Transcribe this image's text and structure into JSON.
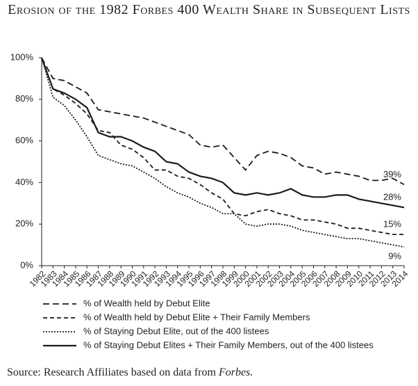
{
  "chart_data": {
    "type": "line",
    "title": "Erosion of the 1982 Forbes 400 Wealth Share in Subsequent Lists",
    "categories": [
      "1982",
      "1983",
      "1984",
      "1985",
      "1986",
      "1987",
      "1988",
      "1989",
      "1990",
      "1991",
      "1992",
      "1993",
      "1994",
      "1995",
      "1996",
      "1997",
      "1998",
      "1999",
      "2000",
      "2001",
      "2002",
      "2003",
      "2004",
      "2005",
      "2006",
      "2007",
      "2008",
      "2009",
      "2010",
      "2011",
      "2012",
      "2013",
      "2014"
    ],
    "ylim": [
      0,
      100
    ],
    "yticks": [
      {
        "value": 0,
        "label": "0%"
      },
      {
        "value": 20,
        "label": "20%"
      },
      {
        "value": 40,
        "label": "40%"
      },
      {
        "value": 60,
        "label": "60%"
      },
      {
        "value": 80,
        "label": "80%"
      },
      {
        "value": 100,
        "label": "100%"
      }
    ],
    "series": [
      {
        "name": "% of Wealth held by Debut Elite",
        "color": "#1a1a1a",
        "line_style": "long-dash",
        "values": [
          100,
          90,
          89,
          86,
          83,
          75,
          74,
          73,
          72,
          71,
          69,
          67,
          65,
          63,
          58,
          57,
          58,
          52,
          46,
          53,
          55,
          54,
          52,
          48,
          47,
          44,
          45,
          44,
          43,
          41,
          41,
          42,
          39
        ],
        "value_labels": [
          null,
          null,
          null,
          null,
          null,
          null,
          null,
          null,
          null,
          null,
          null,
          null,
          null,
          null,
          null,
          null,
          null,
          null,
          null,
          null,
          null,
          null,
          null,
          null,
          null,
          null,
          null,
          null,
          null,
          null,
          null,
          null,
          "39%"
        ]
      },
      {
        "name": "% of Wealth held by Debut Elite + Their Family Members",
        "color": "#1a1a1a",
        "line_style": "dash",
        "values": [
          100,
          85,
          82,
          78,
          73,
          65,
          64,
          58,
          56,
          52,
          46,
          46,
          43,
          42,
          39,
          35,
          32,
          25,
          24,
          26,
          27,
          25,
          24,
          22,
          22,
          21,
          20,
          18,
          18,
          17,
          16,
          15,
          15
        ],
        "value_labels": [
          null,
          null,
          null,
          null,
          null,
          null,
          null,
          null,
          null,
          null,
          null,
          null,
          null,
          null,
          null,
          null,
          null,
          null,
          null,
          null,
          null,
          null,
          null,
          null,
          null,
          null,
          null,
          null,
          null,
          null,
          null,
          null,
          "15%"
        ]
      },
      {
        "name": "% of Staying Debut Elite, out of the 400 listees",
        "color": "#1a1a1a",
        "line_style": "dotted",
        "values": [
          100,
          81,
          77,
          70,
          62,
          53,
          51,
          49,
          48,
          45,
          42,
          38,
          35,
          33,
          30,
          28,
          25,
          25,
          20,
          19,
          20,
          20,
          19,
          17,
          16,
          15,
          14,
          13,
          13,
          12,
          11,
          10,
          9
        ],
        "value_labels": [
          null,
          null,
          null,
          null,
          null,
          null,
          null,
          null,
          null,
          null,
          null,
          null,
          null,
          null,
          null,
          null,
          null,
          null,
          null,
          null,
          null,
          null,
          null,
          null,
          null,
          null,
          null,
          null,
          null,
          null,
          null,
          null,
          "9%"
        ]
      },
      {
        "name": "% of Staying Debut Elites + Their Family Members, out of the 400 listees",
        "color": "#1a1a1a",
        "line_style": "solid",
        "values": [
          100,
          85,
          83,
          80,
          76,
          64,
          62,
          62,
          60,
          57,
          55,
          50,
          49,
          45,
          43,
          42,
          40,
          35,
          34,
          35,
          34,
          35,
          37,
          34,
          33,
          33,
          34,
          34,
          32,
          31,
          30,
          29,
          28
        ],
        "value_labels": [
          null,
          null,
          null,
          null,
          null,
          null,
          null,
          null,
          null,
          null,
          null,
          null,
          null,
          null,
          null,
          null,
          null,
          null,
          null,
          null,
          null,
          null,
          null,
          null,
          null,
          null,
          null,
          null,
          null,
          null,
          null,
          null,
          "28%"
        ]
      }
    ],
    "source": {
      "text": "Source: Research Affiliates based on data from",
      "emphasis": "Forbes."
    }
  }
}
